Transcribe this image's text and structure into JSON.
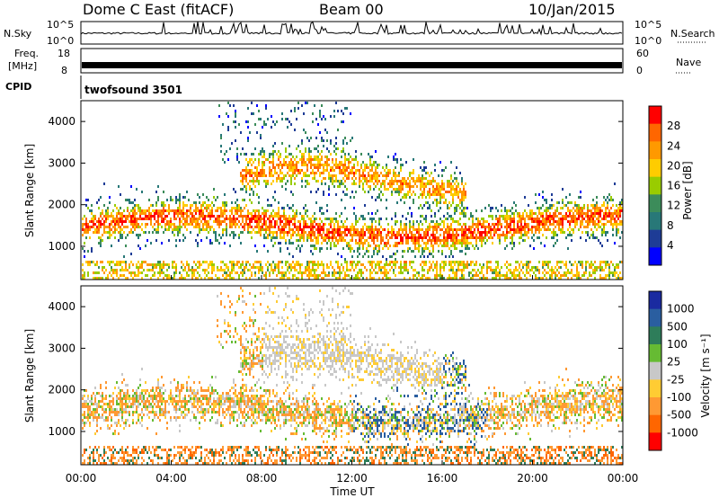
{
  "header": {
    "station": "Dome C East (fitACF)",
    "beam": "Beam 00",
    "date": "10/Jan/2015"
  },
  "strip_panels": {
    "nsky_label": "N.Sky",
    "nsky_ticks": [
      "10^5",
      "10^0"
    ],
    "nsearch_label": "N.Search",
    "freq_label_line1": "Freq.",
    "freq_label_line2": "[MHz]",
    "freq_ticks": [
      "18",
      "8"
    ],
    "nave_label": "Nave",
    "nave_ticks": [
      "60",
      "0"
    ],
    "cpid_label": "CPID",
    "cpid_value": "twofsound 3501"
  },
  "chart_data": [
    {
      "type": "heatmap",
      "panel": "power",
      "ylabel": "Slant Range [km]",
      "yticks": [
        1000,
        2000,
        3000,
        4000
      ],
      "ylim": [
        200,
        4500
      ],
      "colorbar_label": "Power [dB]",
      "colorbar_ticks": [
        "28",
        "24",
        "20",
        "16",
        "12",
        "8",
        "4"
      ],
      "colorbar_colors": [
        "#ff0000",
        "#ff6600",
        "#ff9900",
        "#ffcc00",
        "#99cc00",
        "#3c8c5a",
        "#287878",
        "#1e3c96",
        "#0000ff"
      ]
    },
    {
      "type": "heatmap",
      "panel": "velocity",
      "ylabel": "Slant Range [km]",
      "yticks": [
        1000,
        2000,
        3000,
        4000
      ],
      "ylim": [
        200,
        4500
      ],
      "colorbar_label": "Velocity [m s⁻¹]",
      "colorbar_ticks": [
        "1000",
        "500",
        "100",
        "25",
        "-25",
        "-100",
        "-500",
        "-1000"
      ],
      "colorbar_colors": [
        "#1a2aa0",
        "#2a5ea0",
        "#2e7d5a",
        "#66bb33",
        "#c8c8c8",
        "#ffcc33",
        "#ff9933",
        "#ff6600",
        "#ff0000"
      ],
      "xlabel": "Time UT",
      "xticks": [
        "00:00",
        "04:00",
        "08:00",
        "12:00",
        "16:00",
        "20:00",
        "00:00"
      ]
    }
  ]
}
